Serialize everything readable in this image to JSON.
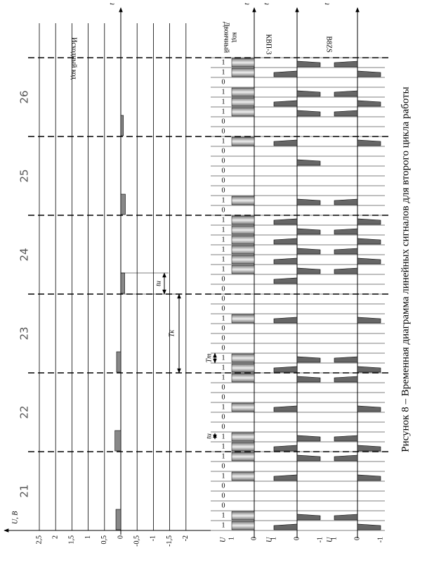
{
  "caption": "Рисунок 8 – Временная диаграмма линейных сигналов для второго цикла работы",
  "time_label": "t",
  "slots": [
    21,
    22,
    23,
    24,
    25,
    26
  ],
  "source": {
    "label": "Исходный код",
    "axis_label": "U, В",
    "samples": [
      0.15,
      0.18,
      0.13,
      -0.12,
      -0.14,
      -0.08
    ],
    "yticks": [
      {
        "value": 2.5,
        "label": "2,5"
      },
      2,
      {
        "value": 1.5,
        "label": "1,5"
      },
      1,
      {
        "value": 0.5,
        "label": "0,5"
      },
      0,
      {
        "value": -0.5,
        "label": "-0,5"
      },
      -1,
      {
        "value": -1.5,
        "label": "-1,5"
      },
      -2
    ]
  },
  "binary": {
    "label": [
      "Двоичный",
      "код"
    ],
    "axis_label": "U",
    "yticks": [
      1,
      0
    ],
    "bits": [
      [
        1,
        1,
        0,
        0,
        0,
        1,
        0,
        1
      ],
      [
        1,
        1,
        0,
        0,
        1,
        0,
        0,
        1
      ],
      [
        1,
        1,
        0,
        0,
        0,
        1,
        0,
        0
      ],
      [
        0,
        0,
        1,
        1,
        1,
        1,
        1,
        1
      ],
      [
        0,
        1,
        0,
        0,
        0,
        0,
        0,
        1
      ],
      [
        0,
        0,
        1,
        1,
        1,
        0,
        1,
        1
      ]
    ]
  },
  "kvp3": {
    "label": "КВП-3",
    "axis_label": "U",
    "yticks": [
      1,
      0,
      -1
    ],
    "levels": [
      [
        1,
        -1,
        0,
        0,
        0,
        1,
        0,
        -1
      ],
      [
        1,
        -1,
        0,
        0,
        1,
        0,
        0,
        -1
      ],
      [
        1,
        -1,
        0,
        0,
        0,
        1,
        0,
        0
      ],
      [
        0,
        1,
        -1,
        1,
        -1,
        1,
        -1,
        1
      ],
      [
        0,
        -1,
        0,
        0,
        0,
        -1,
        0,
        1
      ],
      [
        0,
        0,
        -1,
        1,
        -1,
        0,
        1,
        -1
      ]
    ]
  },
  "b8zs": {
    "label": "B8ZS",
    "axis_label": "U",
    "yticks": [
      1,
      0,
      -1
    ],
    "levels": [
      [
        -1,
        1,
        0,
        0,
        0,
        -1,
        0,
        1
      ],
      [
        -1,
        1,
        0,
        0,
        -1,
        0,
        0,
        1
      ],
      [
        -1,
        1,
        0,
        0,
        0,
        -1,
        0,
        0
      ],
      [
        0,
        0,
        1,
        -1,
        1,
        -1,
        1,
        -1
      ],
      [
        0,
        1,
        0,
        0,
        0,
        0,
        0,
        -1
      ],
      [
        0,
        0,
        1,
        -1,
        1,
        0,
        -1,
        1
      ]
    ]
  },
  "annotations": {
    "Tk": "Tк",
    "ti": "tи",
    "Tt": "Tт",
    "ti2": "tи"
  }
}
